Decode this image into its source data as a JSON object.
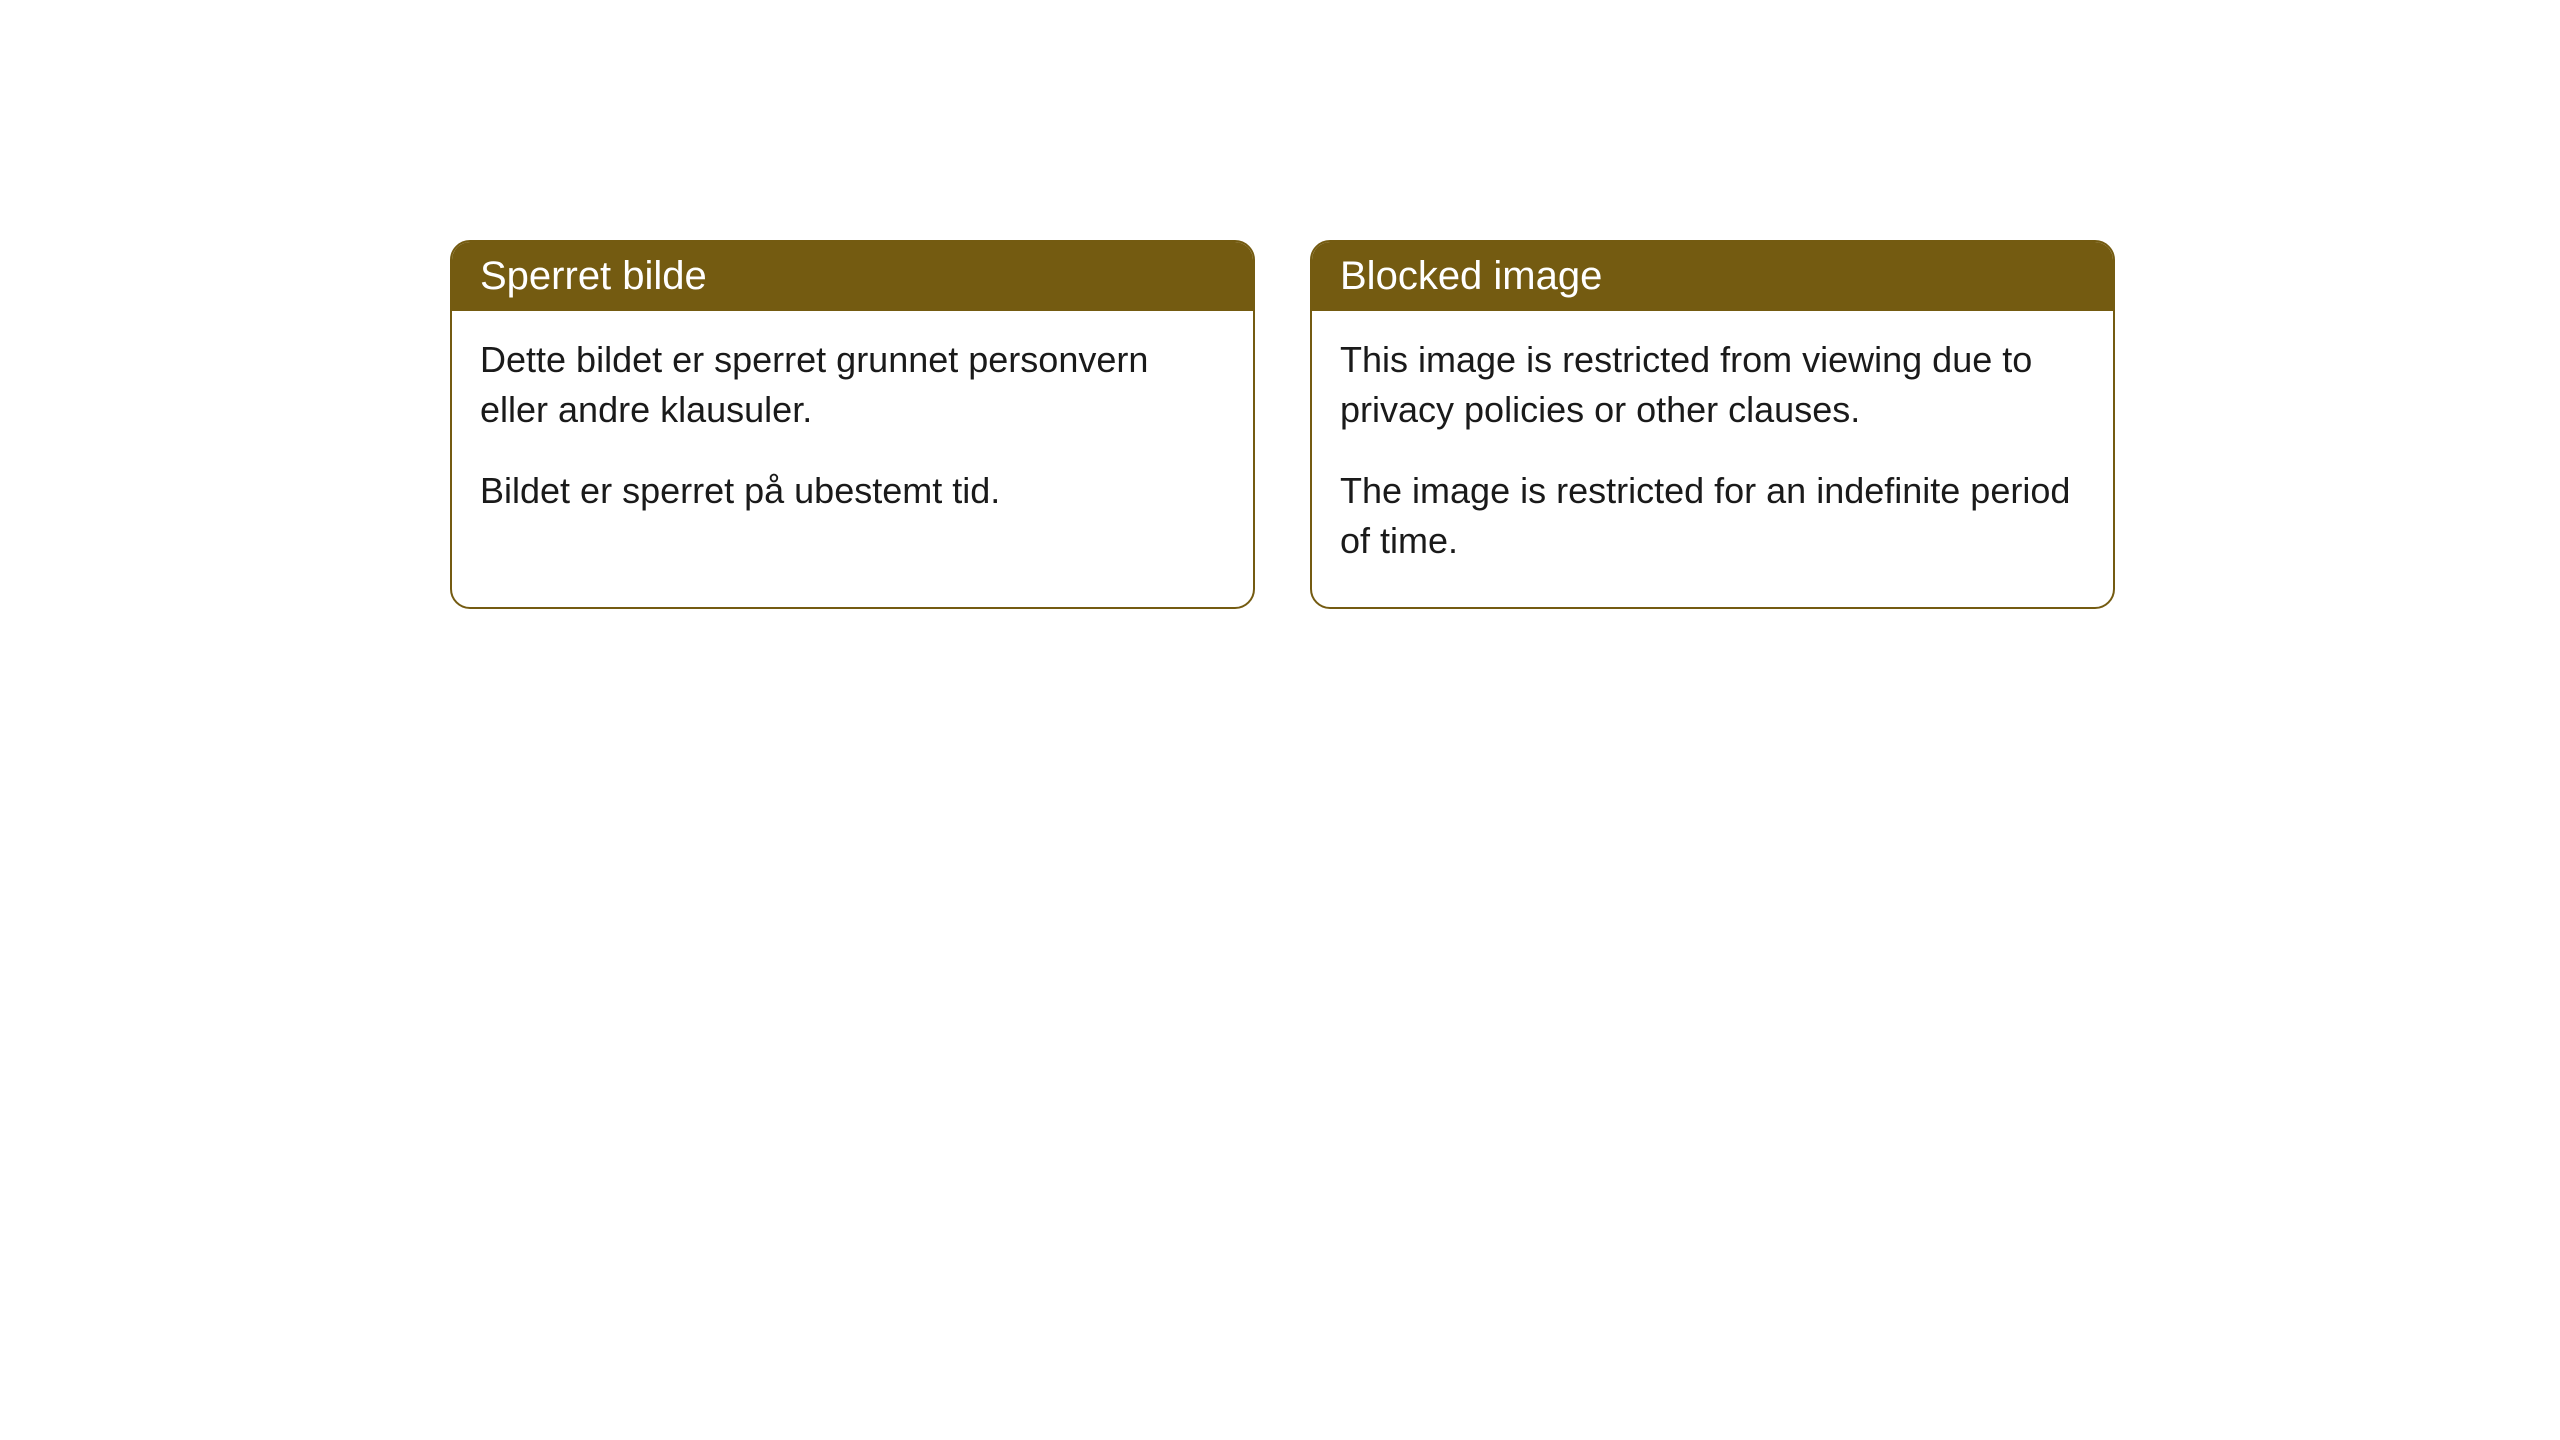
{
  "cards": [
    {
      "title": "Sperret bilde",
      "paragraph1": "Dette bildet er sperret grunnet personvern eller andre klausuler.",
      "paragraph2": "Bildet er sperret på ubestemt tid."
    },
    {
      "title": "Blocked image",
      "paragraph1": "This image is restricted from viewing due to privacy policies or other clauses.",
      "paragraph2": "The image is restricted for an indefinite period of time."
    }
  ],
  "styles": {
    "header_bg_color": "#745b11",
    "header_text_color": "#ffffff",
    "border_color": "#745b11",
    "body_text_color": "#1a1a1a",
    "page_bg_color": "#ffffff",
    "border_radius": 20,
    "title_fontsize": 40,
    "body_fontsize": 36
  }
}
